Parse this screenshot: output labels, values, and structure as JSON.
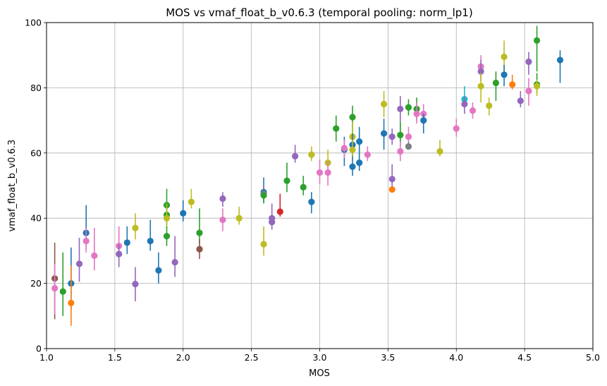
{
  "chart_data": {
    "type": "scatter",
    "title": "MOS vs vmaf_float_b_v0.6.3 (temporal pooling: norm_lp1)",
    "xlabel": "MOS",
    "ylabel": "vmaf_float_b_v0.6.3",
    "xlim": [
      1.0,
      5.0
    ],
    "ylim": [
      0,
      100
    ],
    "xticks": [
      "1.0",
      "1.5",
      "2.0",
      "2.5",
      "3.0",
      "3.5",
      "4.0",
      "4.5",
      "5.0"
    ],
    "yticks": [
      "0",
      "20",
      "40",
      "60",
      "80",
      "100"
    ],
    "grid": true,
    "error_bars": true,
    "points": [
      {
        "x": 1.06,
        "y": 21.5,
        "lo": 9.0,
        "hi": 32.5,
        "color": "#8c564b"
      },
      {
        "x": 1.06,
        "y": 18.5,
        "lo": 10.5,
        "hi": 26.0,
        "color": "#e377c2"
      },
      {
        "x": 1.12,
        "y": 17.5,
        "lo": 10.0,
        "hi": 29.5,
        "color": "#2ca02c"
      },
      {
        "x": 1.18,
        "y": 20.0,
        "lo": 12.0,
        "hi": 31.0,
        "color": "#1f77b4"
      },
      {
        "x": 1.18,
        "y": 14.0,
        "lo": 7.0,
        "hi": 25.5,
        "color": "#ff7f0e"
      },
      {
        "x": 1.24,
        "y": 26.0,
        "lo": 20.5,
        "hi": 34.0,
        "color": "#9467bd"
      },
      {
        "x": 1.29,
        "y": 35.5,
        "lo": 30.5,
        "hi": 44.0,
        "color": "#1f77b4"
      },
      {
        "x": 1.29,
        "y": 33.0,
        "lo": 29.5,
        "hi": 37.0,
        "color": "#e377c2"
      },
      {
        "x": 1.35,
        "y": 28.5,
        "lo": 24.0,
        "hi": 37.0,
        "color": "#e377c2"
      },
      {
        "x": 1.53,
        "y": 31.5,
        "lo": 28.0,
        "hi": 37.5,
        "color": "#e377c2"
      },
      {
        "x": 1.53,
        "y": 29.0,
        "lo": 25.0,
        "hi": 32.0,
        "color": "#9467bd"
      },
      {
        "x": 1.59,
        "y": 32.5,
        "lo": 29.0,
        "hi": 37.5,
        "color": "#1f77b4"
      },
      {
        "x": 1.65,
        "y": 37.0,
        "lo": 33.5,
        "hi": 41.5,
        "color": "#bcbd22"
      },
      {
        "x": 1.65,
        "y": 19.8,
        "lo": 14.5,
        "hi": 25.0,
        "color": "#9467bd"
      },
      {
        "x": 1.76,
        "y": 33.0,
        "lo": 30.0,
        "hi": 39.5,
        "color": "#1f77b4"
      },
      {
        "x": 1.82,
        "y": 24.0,
        "lo": 20.0,
        "hi": 29.5,
        "color": "#1f77b4"
      },
      {
        "x": 1.88,
        "y": 44.0,
        "lo": 39.5,
        "hi": 49.0,
        "color": "#2ca02c"
      },
      {
        "x": 1.88,
        "y": 41.0,
        "lo": 38.0,
        "hi": 45.0,
        "color": "#2ca02c"
      },
      {
        "x": 1.88,
        "y": 40.0,
        "lo": 37.0,
        "hi": 44.5,
        "color": "#bcbd22"
      },
      {
        "x": 1.88,
        "y": 34.5,
        "lo": 31.5,
        "hi": 37.5,
        "color": "#2ca02c"
      },
      {
        "x": 1.94,
        "y": 26.5,
        "lo": 22.0,
        "hi": 34.5,
        "color": "#9467bd"
      },
      {
        "x": 2.0,
        "y": 41.5,
        "lo": 39.0,
        "hi": 45.5,
        "color": "#1f77b4"
      },
      {
        "x": 2.06,
        "y": 45.0,
        "lo": 43.0,
        "hi": 49.0,
        "color": "#bcbd22"
      },
      {
        "x": 2.12,
        "y": 35.5,
        "lo": 32.0,
        "hi": 43.0,
        "color": "#2ca02c"
      },
      {
        "x": 2.12,
        "y": 30.5,
        "lo": 27.5,
        "hi": 33.5,
        "color": "#8c564b"
      },
      {
        "x": 2.29,
        "y": 46.0,
        "lo": 43.5,
        "hi": 48.0,
        "color": "#9467bd"
      },
      {
        "x": 2.29,
        "y": 39.5,
        "lo": 36.0,
        "hi": 43.0,
        "color": "#e377c2"
      },
      {
        "x": 2.41,
        "y": 40.0,
        "lo": 38.0,
        "hi": 43.5,
        "color": "#bcbd22"
      },
      {
        "x": 2.59,
        "y": 48.0,
        "lo": 45.0,
        "hi": 52.5,
        "color": "#1f77b4"
      },
      {
        "x": 2.59,
        "y": 47.5,
        "lo": 45.5,
        "hi": 50.0,
        "color": "#9467bd"
      },
      {
        "x": 2.59,
        "y": 47.0,
        "lo": 44.5,
        "hi": 49.0,
        "color": "#2ca02c"
      },
      {
        "x": 2.59,
        "y": 32.0,
        "lo": 28.5,
        "hi": 37.5,
        "color": "#bcbd22"
      },
      {
        "x": 2.65,
        "y": 40.0,
        "lo": 38.0,
        "hi": 44.5,
        "color": "#9467bd"
      },
      {
        "x": 2.65,
        "y": 38.8,
        "lo": 36.5,
        "hi": 41.0,
        "color": "#9467bd"
      },
      {
        "x": 2.71,
        "y": 42.0,
        "lo": 40.5,
        "hi": 47.5,
        "color": "#d62728"
      },
      {
        "x": 2.76,
        "y": 51.5,
        "lo": 48.0,
        "hi": 57.0,
        "color": "#2ca02c"
      },
      {
        "x": 2.82,
        "y": 59.0,
        "lo": 57.0,
        "hi": 62.5,
        "color": "#9467bd"
      },
      {
        "x": 2.88,
        "y": 49.5,
        "lo": 47.0,
        "hi": 53.0,
        "color": "#2ca02c"
      },
      {
        "x": 2.94,
        "y": 59.5,
        "lo": 57.5,
        "hi": 62.0,
        "color": "#bcbd22"
      },
      {
        "x": 2.94,
        "y": 45.0,
        "lo": 41.5,
        "hi": 48.0,
        "color": "#1f77b4"
      },
      {
        "x": 3.0,
        "y": 54.0,
        "lo": 50.5,
        "hi": 58.0,
        "color": "#e377c2"
      },
      {
        "x": 3.06,
        "y": 57.0,
        "lo": 53.5,
        "hi": 61.0,
        "color": "#bcbd22"
      },
      {
        "x": 3.06,
        "y": 54.0,
        "lo": 50.0,
        "hi": 57.5,
        "color": "#e377c2"
      },
      {
        "x": 3.12,
        "y": 67.5,
        "lo": 63.5,
        "hi": 71.5,
        "color": "#2ca02c"
      },
      {
        "x": 3.18,
        "y": 61.0,
        "lo": 56.0,
        "hi": 65.0,
        "color": "#1f77b4"
      },
      {
        "x": 3.18,
        "y": 61.5,
        "lo": 58.5,
        "hi": 64.0,
        "color": "#e377c2"
      },
      {
        "x": 3.24,
        "y": 71.0,
        "lo": 66.0,
        "hi": 74.5,
        "color": "#2ca02c"
      },
      {
        "x": 3.24,
        "y": 65.0,
        "lo": 61.5,
        "hi": 69.5,
        "color": "#bcbd22"
      },
      {
        "x": 3.24,
        "y": 62.5,
        "lo": 59.0,
        "hi": 66.0,
        "color": "#1f77b4"
      },
      {
        "x": 3.24,
        "y": 61.0,
        "lo": 58.0,
        "hi": 64.0,
        "color": "#bcbd22"
      },
      {
        "x": 3.24,
        "y": 55.8,
        "lo": 53.0,
        "hi": 59.0,
        "color": "#1f77b4"
      },
      {
        "x": 3.29,
        "y": 63.5,
        "lo": 58.5,
        "hi": 68.0,
        "color": "#1f77b4"
      },
      {
        "x": 3.29,
        "y": 57.0,
        "lo": 54.5,
        "hi": 60.0,
        "color": "#1f77b4"
      },
      {
        "x": 3.35,
        "y": 59.5,
        "lo": 57.5,
        "hi": 62.0,
        "color": "#e377c2"
      },
      {
        "x": 3.47,
        "y": 75.0,
        "lo": 71.0,
        "hi": 79.0,
        "color": "#bcbd22"
      },
      {
        "x": 3.47,
        "y": 66.0,
        "lo": 61.0,
        "hi": 70.5,
        "color": "#1f77b4"
      },
      {
        "x": 3.53,
        "y": 65.0,
        "lo": 62.5,
        "hi": 67.5,
        "color": "#9467bd"
      },
      {
        "x": 3.53,
        "y": 52.0,
        "lo": 49.5,
        "hi": 56.5,
        "color": "#9467bd"
      },
      {
        "x": 3.53,
        "y": 48.8,
        "lo": 48.0,
        "hi": 49.5,
        "color": "#ff7f0e"
      },
      {
        "x": 3.59,
        "y": 73.5,
        "lo": 69.5,
        "hi": 77.5,
        "color": "#9467bd"
      },
      {
        "x": 3.59,
        "y": 65.5,
        "lo": 62.5,
        "hi": 69.0,
        "color": "#bcbd22"
      },
      {
        "x": 3.59,
        "y": 65.5,
        "lo": 62.0,
        "hi": 69.5,
        "color": "#2ca02c"
      },
      {
        "x": 3.59,
        "y": 60.5,
        "lo": 57.5,
        "hi": 63.5,
        "color": "#e377c2"
      },
      {
        "x": 3.65,
        "y": 74.0,
        "lo": 71.5,
        "hi": 76.5,
        "color": "#2ca02c"
      },
      {
        "x": 3.65,
        "y": 65.0,
        "lo": 63.0,
        "hi": 68.0,
        "color": "#e377c2"
      },
      {
        "x": 3.65,
        "y": 62.0,
        "lo": 61.0,
        "hi": 63.5,
        "color": "#7f7f7f"
      },
      {
        "x": 3.71,
        "y": 73.5,
        "lo": 70.0,
        "hi": 77.0,
        "color": "#2ca02c"
      },
      {
        "x": 3.71,
        "y": 72.0,
        "lo": 69.0,
        "hi": 75.5,
        "color": "#e377c2"
      },
      {
        "x": 3.76,
        "y": 72.0,
        "lo": 69.5,
        "hi": 75.0,
        "color": "#e377c2"
      },
      {
        "x": 3.76,
        "y": 70.0,
        "lo": 66.0,
        "hi": 72.0,
        "color": "#1f77b4"
      },
      {
        "x": 3.88,
        "y": 60.5,
        "lo": 59.0,
        "hi": 64.0,
        "color": "#bcbd22"
      },
      {
        "x": 4.0,
        "y": 67.5,
        "lo": 65.0,
        "hi": 70.5,
        "color": "#e377c2"
      },
      {
        "x": 4.06,
        "y": 76.5,
        "lo": 74.5,
        "hi": 80.5,
        "color": "#17becf"
      },
      {
        "x": 4.06,
        "y": 75.0,
        "lo": 72.0,
        "hi": 77.5,
        "color": "#9467bd"
      },
      {
        "x": 4.12,
        "y": 73.0,
        "lo": 70.5,
        "hi": 75.5,
        "color": "#e377c2"
      },
      {
        "x": 4.18,
        "y": 86.5,
        "lo": 82.0,
        "hi": 90.0,
        "color": "#e377c2"
      },
      {
        "x": 4.18,
        "y": 85.0,
        "lo": 82.0,
        "hi": 88.5,
        "color": "#9467bd"
      },
      {
        "x": 4.18,
        "y": 80.5,
        "lo": 75.5,
        "hi": 84.5,
        "color": "#bcbd22"
      },
      {
        "x": 4.24,
        "y": 74.5,
        "lo": 71.5,
        "hi": 77.0,
        "color": "#bcbd22"
      },
      {
        "x": 4.29,
        "y": 81.5,
        "lo": 76.0,
        "hi": 85.0,
        "color": "#2ca02c"
      },
      {
        "x": 4.35,
        "y": 89.5,
        "lo": 85.0,
        "hi": 94.5,
        "color": "#bcbd22"
      },
      {
        "x": 4.35,
        "y": 84.0,
        "lo": 80.5,
        "hi": 87.0,
        "color": "#1f77b4"
      },
      {
        "x": 4.41,
        "y": 81.0,
        "lo": 79.5,
        "hi": 84.0,
        "color": "#ff7f0e"
      },
      {
        "x": 4.47,
        "y": 76.0,
        "lo": 74.0,
        "hi": 79.0,
        "color": "#9467bd"
      },
      {
        "x": 4.53,
        "y": 88.0,
        "lo": 84.0,
        "hi": 91.0,
        "color": "#9467bd"
      },
      {
        "x": 4.53,
        "y": 79.0,
        "lo": 74.5,
        "hi": 83.0,
        "color": "#e377c2"
      },
      {
        "x": 4.59,
        "y": 94.5,
        "lo": 85.0,
        "hi": 99.0,
        "color": "#2ca02c"
      },
      {
        "x": 4.59,
        "y": 81.0,
        "lo": 78.5,
        "hi": 84.5,
        "color": "#2ca02c"
      },
      {
        "x": 4.59,
        "y": 80.5,
        "lo": 77.5,
        "hi": 82.5,
        "color": "#bcbd22"
      },
      {
        "x": 4.76,
        "y": 88.5,
        "lo": 81.5,
        "hi": 91.5,
        "color": "#1f77b4"
      }
    ]
  }
}
